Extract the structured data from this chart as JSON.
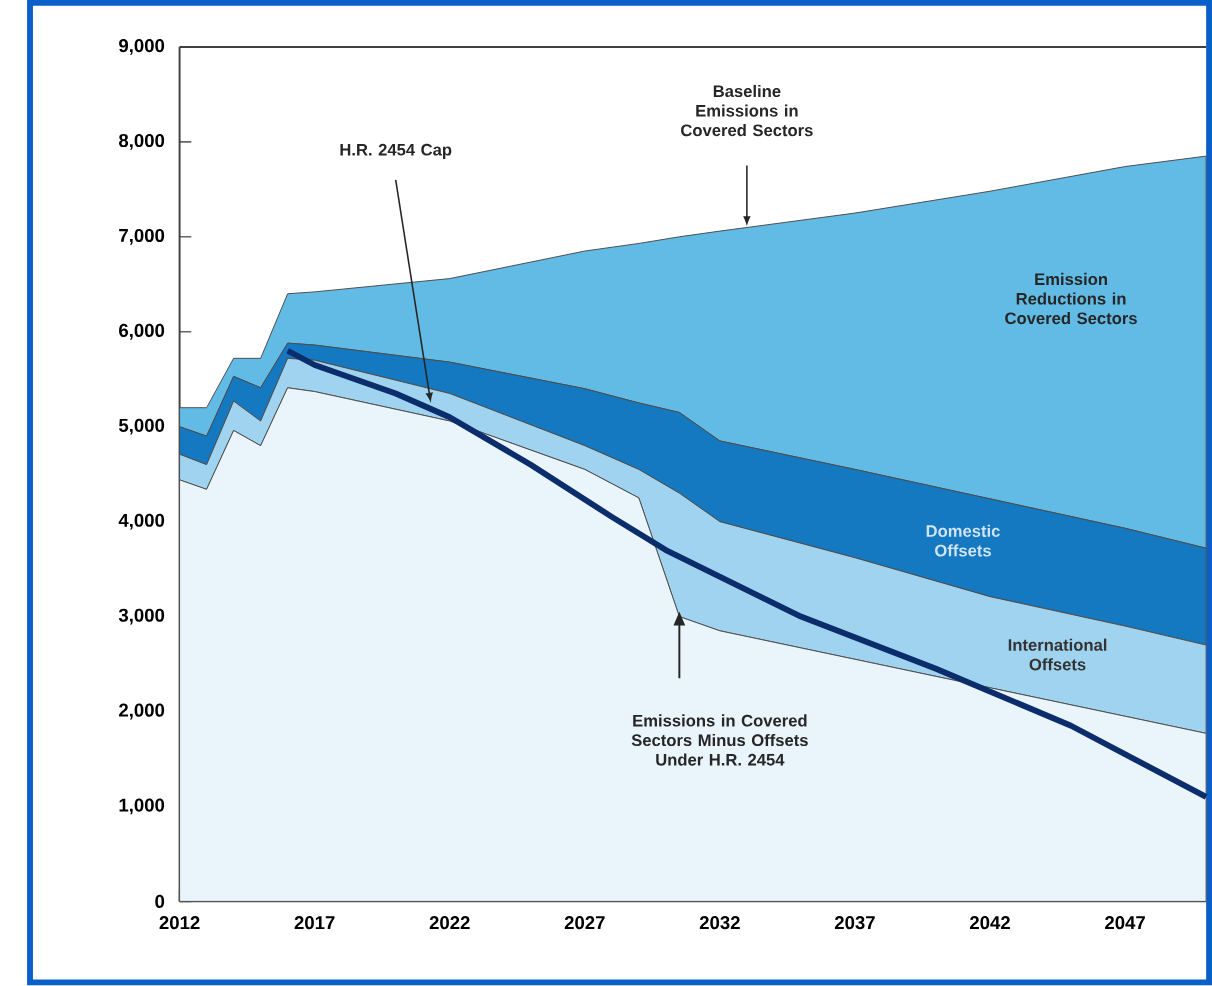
{
  "chart_data": {
    "type": "area",
    "stacked": true,
    "marker": "none",
    "x": [
      2012,
      2013,
      2014,
      2015,
      2016,
      2017,
      2022,
      2027,
      2029,
      2030.5,
      2032,
      2037,
      2042,
      2047,
      2050
    ],
    "series": [
      {
        "name": "Emissions in Covered Sectors Minus Offsets Under H.R. 2454",
        "color": "#eaf4fb",
        "values": [
          4440,
          4340,
          4960,
          4800,
          5410,
          5370,
          5060,
          4550,
          4250,
          3000,
          2850,
          2550,
          2250,
          1950,
          1770
        ]
      },
      {
        "name": "International Offsets",
        "color": "#9fd3ef",
        "values": [
          270,
          260,
          310,
          260,
          310,
          330,
          290,
          250,
          300,
          1300,
          1150,
          1070,
          960,
          950,
          930
        ]
      },
      {
        "name": "Domestic Offsets",
        "color": "#1479c0",
        "values": [
          290,
          300,
          260,
          350,
          160,
          160,
          330,
          600,
          700,
          850,
          850,
          930,
          1030,
          1030,
          1020
        ]
      },
      {
        "name": "Emission Reductions in Covered Sectors",
        "color": "#62bbe5",
        "values": [
          200,
          300,
          190,
          310,
          520,
          560,
          880,
          1450,
          1680,
          1850,
          2210,
          2700,
          3240,
          3810,
          4130
        ]
      },
      {
        "name": "H.R. 2454 Cap",
        "type": "line",
        "color": "#0c2d6b",
        "x": [
          2016,
          2017,
          2020,
          2022,
          2025,
          2028,
          2030,
          2035,
          2040,
          2045,
          2050
        ],
        "values": [
          5800,
          5650,
          5350,
          5100,
          4600,
          4050,
          3700,
          3000,
          2450,
          1850,
          1100
        ]
      }
    ],
    "annotations": [
      "Baseline Emissions in Covered Sectors"
    ],
    "xlim": [
      2012,
      2050
    ],
    "xticks": [
      2012,
      2017,
      2022,
      2027,
      2032,
      2037,
      2042,
      2047
    ],
    "ylim": [
      0,
      9000
    ],
    "yticks": [
      0,
      {
        "value": 1000,
        "label": "1,000"
      },
      {
        "value": 2000,
        "label": "2,000"
      },
      {
        "value": 3000,
        "label": "3,000"
      },
      {
        "value": 4000,
        "label": "4,000"
      },
      {
        "value": 5000,
        "label": "5,000"
      },
      {
        "value": 6000,
        "label": "6,000"
      },
      {
        "value": 7000,
        "label": "7,000"
      },
      {
        "value": 8000,
        "label": "8,000"
      },
      {
        "value": 9000,
        "label": "9,000"
      }
    ]
  }
}
